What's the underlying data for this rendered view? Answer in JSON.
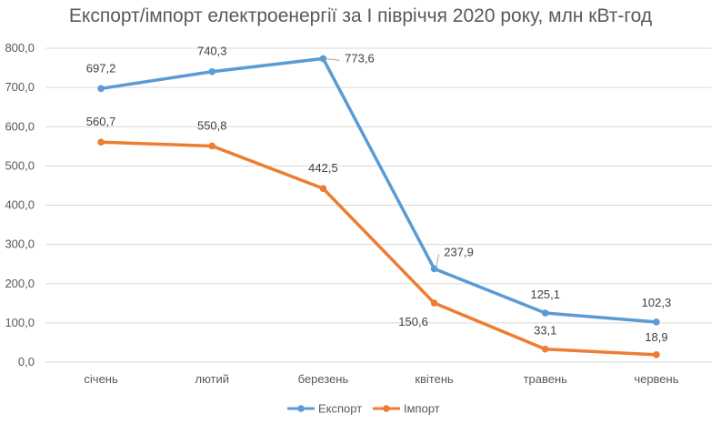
{
  "chart_data": {
    "type": "line",
    "title": "Експорт/імпорт електроенергії за І півріччя 2020 року, млн кВт-год",
    "categories": [
      "січень",
      "лютий",
      "березень",
      "квітень",
      "травень",
      "червень"
    ],
    "series": [
      {
        "name": "Експорт",
        "color": "#5B9BD5",
        "values": [
          697.2,
          740.3,
          773.6,
          237.9,
          125.1,
          102.3
        ],
        "labels": [
          "697,2",
          "740,3",
          "773,6",
          "237,9",
          "125,1",
          "102,3"
        ]
      },
      {
        "name": "Імпорт",
        "color": "#ED7D31",
        "values": [
          560.7,
          550.8,
          442.5,
          150.6,
          33.1,
          18.9
        ],
        "labels": [
          "560,7",
          "550,8",
          "442,5",
          "150,6",
          "33,1",
          "18,9"
        ]
      }
    ],
    "ylim": [
      0,
      800
    ],
    "yticks": [
      0,
      100,
      200,
      300,
      400,
      500,
      600,
      700,
      800
    ],
    "ytick_labels": [
      "0,0",
      "100,0",
      "200,0",
      "300,0",
      "400,0",
      "500,0",
      "600,0",
      "700,0",
      "800,0"
    ],
    "grid": true,
    "legend_position": "bottom"
  }
}
